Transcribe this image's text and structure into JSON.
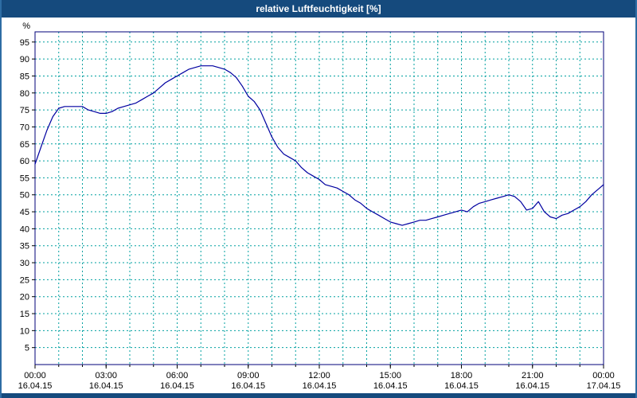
{
  "window": {
    "title": "relative Luftfeuchtigkeit [%]"
  },
  "colors": {
    "title_bar_bg": "#154a7d",
    "title_text": "#ffffff",
    "grid": "#00A0A0",
    "line": "#0000A0",
    "plot_border": "#00007a",
    "page_border": "#2e6da4",
    "axis_text": "#000000"
  },
  "chart_data": {
    "type": "line",
    "title": "relative Luftfeuchtigkeit [%]",
    "ylabel": "%",
    "ylim": [
      0,
      98
    ],
    "y_ticks": [
      5,
      10,
      15,
      20,
      25,
      30,
      35,
      40,
      45,
      50,
      55,
      60,
      65,
      70,
      75,
      80,
      85,
      90,
      95
    ],
    "x_range_hours": [
      0,
      24
    ],
    "grid": {
      "style": "dashed",
      "x_step_hours": 1,
      "y_step": 5
    },
    "x_ticks": [
      {
        "hour": 0,
        "time": "00:00",
        "date": "16.04.15"
      },
      {
        "hour": 3,
        "time": "03:00",
        "date": "16.04.15"
      },
      {
        "hour": 6,
        "time": "06:00",
        "date": "16.04.15"
      },
      {
        "hour": 9,
        "time": "09:00",
        "date": "16.04.15"
      },
      {
        "hour": 12,
        "time": "12:00",
        "date": "16.04.15"
      },
      {
        "hour": 15,
        "time": "15:00",
        "date": "16.04.15"
      },
      {
        "hour": 18,
        "time": "18:00",
        "date": "16.04.15"
      },
      {
        "hour": 21,
        "time": "21:00",
        "date": "16.04.15"
      },
      {
        "hour": 24,
        "time": "00:00",
        "date": "17.04.15"
      }
    ],
    "series": [
      {
        "name": "relative Luftfeuchtigkeit",
        "x": [
          0,
          0.25,
          0.5,
          0.75,
          1,
          1.25,
          1.5,
          1.75,
          2,
          2.25,
          2.5,
          2.75,
          3,
          3.25,
          3.5,
          3.75,
          4,
          4.25,
          4.5,
          4.75,
          5,
          5.25,
          5.5,
          5.75,
          6,
          6.25,
          6.5,
          6.75,
          7,
          7.25,
          7.5,
          7.75,
          8,
          8.25,
          8.5,
          8.75,
          9,
          9.25,
          9.5,
          9.75,
          10,
          10.25,
          10.5,
          10.75,
          11,
          11.25,
          11.5,
          11.75,
          12,
          12.25,
          12.5,
          12.75,
          13,
          13.25,
          13.5,
          13.75,
          14,
          14.25,
          14.5,
          14.75,
          15,
          15.25,
          15.5,
          15.75,
          16,
          16.25,
          16.5,
          16.75,
          17,
          17.25,
          17.5,
          17.75,
          18,
          18.25,
          18.5,
          18.75,
          19,
          19.25,
          19.5,
          19.75,
          20,
          20.25,
          20.5,
          20.75,
          21,
          21.25,
          21.5,
          21.75,
          22,
          22.25,
          22.5,
          22.75,
          23,
          23.25,
          23.5,
          23.75,
          24
        ],
        "y": [
          59,
          64,
          69,
          73,
          75.5,
          76,
          76,
          76,
          76,
          75,
          74.5,
          74,
          74,
          74.5,
          75.5,
          76,
          76.5,
          77,
          78,
          79,
          80,
          81.5,
          83,
          84,
          85,
          86,
          87,
          87.5,
          88,
          88,
          88,
          87.5,
          87,
          86,
          84.5,
          82,
          79,
          77.5,
          75,
          71,
          67,
          64,
          62,
          61,
          60,
          58,
          56.5,
          55.5,
          54.5,
          53,
          52.5,
          52,
          51,
          50,
          48.5,
          47.5,
          46,
          45,
          44,
          43,
          42,
          41.5,
          41,
          41.5,
          42,
          42.5,
          42.5,
          43,
          43.5,
          44,
          44.5,
          45,
          45.5,
          45,
          46.5,
          47.5,
          48,
          48.5,
          49,
          49.5,
          50,
          49.5,
          48,
          45.5,
          46,
          48,
          45,
          43.5,
          43,
          44,
          44.5,
          45.5,
          46.5,
          48,
          50,
          51.5,
          53
        ]
      }
    ]
  }
}
